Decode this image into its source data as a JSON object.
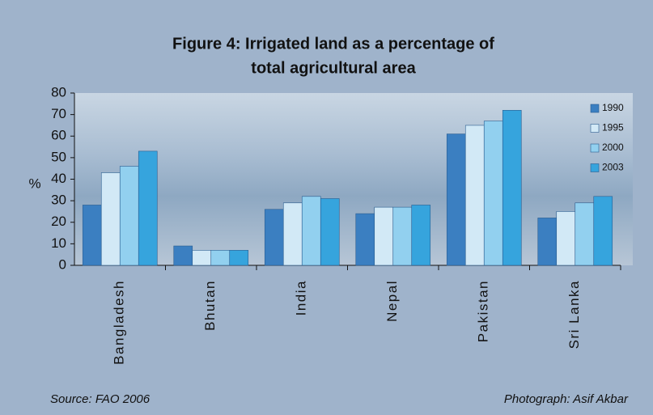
{
  "chart_data": {
    "type": "bar",
    "title": [
      "Figure 4: Irrigated land as a percentage of",
      "total agricultural area"
    ],
    "y_label": "%",
    "categories": [
      "Bangladesh",
      "Bhutan",
      "India",
      "Nepal",
      "Pakistan",
      "Sri Lanka"
    ],
    "series": [
      {
        "name": "1990",
        "color": "#3b7fc1",
        "values": [
          28,
          9,
          26,
          24,
          61,
          22
        ]
      },
      {
        "name": "1995",
        "color": "#d2e9f6",
        "values": [
          43,
          7,
          29,
          27,
          65,
          25
        ]
      },
      {
        "name": "2000",
        "color": "#92d0ef",
        "values": [
          46,
          7,
          32,
          27,
          67,
          29
        ]
      },
      {
        "name": "2003",
        "color": "#36a4dd",
        "values": [
          53,
          7,
          31,
          28,
          72,
          32
        ]
      }
    ],
    "ylim": [
      0,
      80
    ],
    "yticks": [
      0,
      10,
      20,
      30,
      40,
      50,
      60,
      70,
      80
    ],
    "legend": "upper right",
    "source": "Source: FAO 2006",
    "credit": "Photograph: Asif Akbar"
  }
}
